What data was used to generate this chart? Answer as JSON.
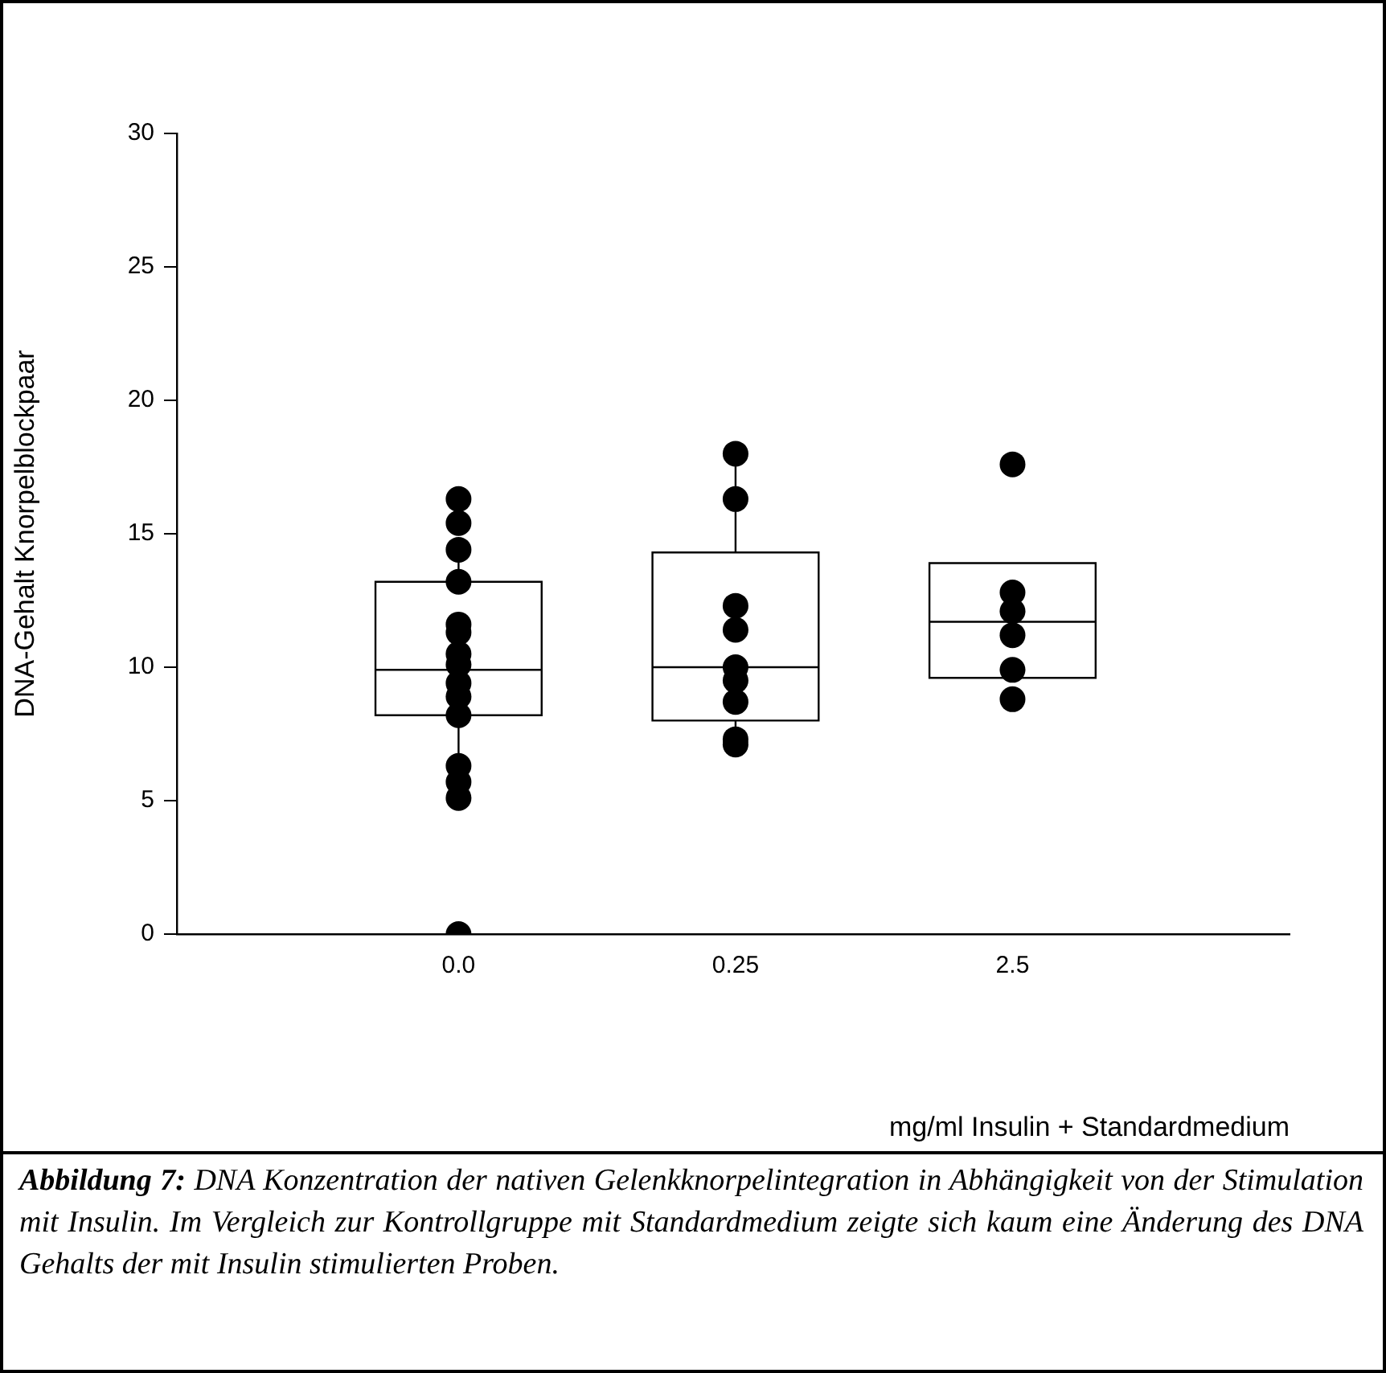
{
  "chart_data": {
    "type": "box",
    "categories": [
      "0.0",
      "0.25",
      "2.5"
    ],
    "boxes": [
      {
        "low": 6.3,
        "q1": 8.2,
        "median": 9.9,
        "q3": 13.2,
        "high": 14.4
      },
      {
        "low": 7.1,
        "q1": 8.0,
        "median": 10.0,
        "q3": 14.3,
        "high": 18.0
      },
      {
        "low": 9.6,
        "q1": 9.6,
        "median": 11.7,
        "q3": 13.9,
        "high": 13.9
      }
    ],
    "series": [
      {
        "type": "scatter",
        "color": "#000000",
        "x": [
          "0.0",
          "0.0",
          "0.0",
          "0.0",
          "0.0",
          "0.0",
          "0.0",
          "0.0",
          "0.0",
          "0.0",
          "0.0",
          "0.0",
          "0.0",
          "0.0",
          "0.0",
          "0.25",
          "0.25",
          "0.25",
          "0.25",
          "0.25",
          "0.25",
          "0.25",
          "0.25",
          "0.25",
          "2.5",
          "2.5",
          "2.5",
          "2.5",
          "2.5",
          "2.5"
        ],
        "values": [
          16.3,
          15.4,
          14.4,
          13.2,
          11.6,
          11.3,
          10.5,
          10.1,
          9.4,
          8.9,
          8.2,
          6.3,
          5.7,
          5.1,
          0,
          18.0,
          16.3,
          12.3,
          11.4,
          10.0,
          9.5,
          8.7,
          7.3,
          7.1,
          17.6,
          12.8,
          12.1,
          11.2,
          9.9,
          8.8
        ]
      }
    ],
    "ylim": [
      0,
      30
    ],
    "yticks": [
      0,
      5,
      10,
      15,
      20,
      25,
      30
    ],
    "xlabel": "mg/ml Insulin + Standardmedium",
    "ylabel": "DNA-Gehalt Knorpelblockpaar",
    "annotations": [
      "Abbildung 7:",
      "DNA Konzentration der nativen Gelenkknorpelintegration in Abhängigkeit von der Stimulation mit Insulin. Im Vergleich zur Kontrollgruppe mit Standardmedium zeigte sich kaum eine Änderung des DNA Gehalts der mit Insulin stimulierten Proben."
    ],
    "marker": "circle",
    "grid": false,
    "legend": false
  }
}
